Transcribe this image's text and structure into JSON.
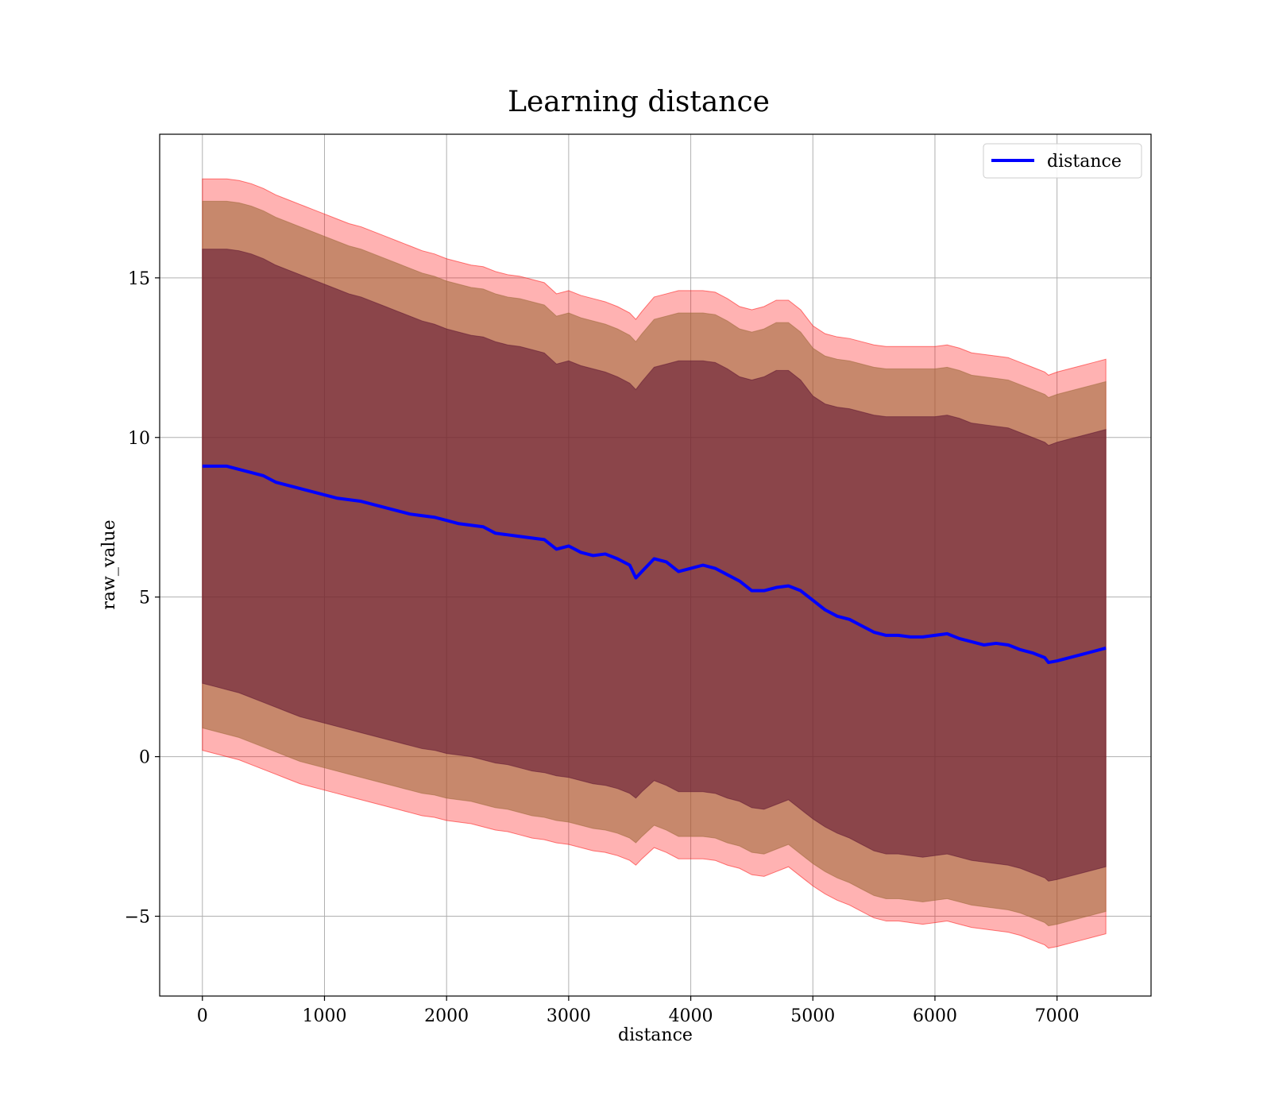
{
  "chart_data": {
    "type": "line",
    "title": "Learning distance",
    "xlabel": "distance",
    "ylabel": "raw_value",
    "xlim": [
      -350,
      7770
    ],
    "ylim": [
      -7.5,
      19.5
    ],
    "xticks": [
      0,
      1000,
      2000,
      3000,
      4000,
      5000,
      6000,
      7000
    ],
    "xtick_labels": [
      "0",
      "1000",
      "2000",
      "3000",
      "4000",
      "5000",
      "6000",
      "7000"
    ],
    "yticks": [
      -5,
      0,
      5,
      10,
      15
    ],
    "ytick_labels": [
      "−5",
      "0",
      "5",
      "10",
      "15"
    ],
    "grid": true,
    "legend": {
      "position": "top-right",
      "entries": [
        "distance"
      ]
    },
    "colors": {
      "line": "#0000ff",
      "band_outer": "#ff0000",
      "band_middle": "#996633",
      "band_inner": "#5a0f30",
      "grid": "#b0b0b0"
    },
    "series": [
      {
        "name": "distance",
        "x": [
          0,
          100,
          200,
          300,
          400,
          500,
          600,
          700,
          800,
          900,
          1000,
          1100,
          1200,
          1300,
          1400,
          1500,
          1600,
          1700,
          1800,
          1900,
          2000,
          2100,
          2200,
          2300,
          2400,
          2500,
          2600,
          2700,
          2800,
          2900,
          3000,
          3100,
          3200,
          3300,
          3400,
          3500,
          3550,
          3600,
          3700,
          3800,
          3900,
          4000,
          4100,
          4200,
          4300,
          4400,
          4500,
          4600,
          4700,
          4800,
          4900,
          5000,
          5100,
          5200,
          5300,
          5400,
          5500,
          5600,
          5700,
          5800,
          5900,
          6000,
          6100,
          6200,
          6300,
          6400,
          6500,
          6600,
          6700,
          6800,
          6900,
          6930,
          7000,
          7100,
          7200,
          7300,
          7400
        ],
        "y": [
          9.1,
          9.1,
          9.1,
          9.0,
          8.9,
          8.8,
          8.6,
          8.5,
          8.4,
          8.3,
          8.2,
          8.1,
          8.05,
          8.0,
          7.9,
          7.8,
          7.7,
          7.6,
          7.55,
          7.5,
          7.4,
          7.3,
          7.25,
          7.2,
          7.0,
          6.95,
          6.9,
          6.85,
          6.8,
          6.5,
          6.6,
          6.4,
          6.3,
          6.35,
          6.2,
          6.0,
          5.6,
          5.8,
          6.2,
          6.1,
          5.8,
          5.9,
          6.0,
          5.9,
          5.7,
          5.5,
          5.2,
          5.2,
          5.3,
          5.35,
          5.2,
          4.9,
          4.6,
          4.4,
          4.3,
          4.1,
          3.9,
          3.8,
          3.8,
          3.75,
          3.75,
          3.8,
          3.85,
          3.7,
          3.6,
          3.5,
          3.55,
          3.5,
          3.35,
          3.25,
          3.1,
          2.95,
          3.0,
          3.1,
          3.2,
          3.3,
          3.4
        ]
      }
    ],
    "bands": [
      {
        "role": "outer",
        "lower": [
          0.2,
          0.1,
          0.0,
          -0.1,
          -0.25,
          -0.4,
          -0.55,
          -0.7,
          -0.85,
          -0.95,
          -1.05,
          -1.15,
          -1.25,
          -1.35,
          -1.45,
          -1.55,
          -1.65,
          -1.75,
          -1.85,
          -1.9,
          -2.0,
          -2.05,
          -2.1,
          -2.2,
          -2.3,
          -2.35,
          -2.45,
          -2.55,
          -2.6,
          -2.7,
          -2.75,
          -2.85,
          -2.95,
          -3.0,
          -3.1,
          -3.25,
          -3.4,
          -3.2,
          -2.85,
          -3.0,
          -3.2,
          -3.2,
          -3.2,
          -3.25,
          -3.4,
          -3.5,
          -3.7,
          -3.75,
          -3.6,
          -3.45,
          -3.75,
          -4.05,
          -4.3,
          -4.5,
          -4.65,
          -4.85,
          -5.05,
          -5.15,
          -5.15,
          -5.2,
          -5.25,
          -5.2,
          -5.15,
          -5.25,
          -5.35,
          -5.4,
          -5.45,
          -5.5,
          -5.6,
          -5.75,
          -5.9,
          -6.0,
          -5.95,
          -5.85,
          -5.75,
          -5.65,
          -5.55
        ],
        "upper": [
          18.1,
          18.1,
          18.1,
          18.05,
          17.95,
          17.8,
          17.6,
          17.45,
          17.3,
          17.15,
          17.0,
          16.85,
          16.7,
          16.6,
          16.45,
          16.3,
          16.15,
          16.0,
          15.85,
          15.75,
          15.6,
          15.5,
          15.4,
          15.35,
          15.2,
          15.1,
          15.05,
          14.95,
          14.85,
          14.5,
          14.6,
          14.45,
          14.35,
          14.25,
          14.1,
          13.9,
          13.7,
          13.95,
          14.4,
          14.5,
          14.6,
          14.6,
          14.6,
          14.55,
          14.35,
          14.1,
          14.0,
          14.1,
          14.3,
          14.3,
          14.0,
          13.5,
          13.25,
          13.15,
          13.1,
          13.0,
          12.9,
          12.85,
          12.85,
          12.85,
          12.85,
          12.85,
          12.9,
          12.8,
          12.65,
          12.6,
          12.55,
          12.5,
          12.35,
          12.2,
          12.05,
          11.95,
          12.05,
          12.15,
          12.25,
          12.35,
          12.45
        ]
      },
      {
        "role": "middle",
        "lower": [
          0.9,
          0.8,
          0.7,
          0.6,
          0.45,
          0.3,
          0.15,
          0.0,
          -0.15,
          -0.25,
          -0.35,
          -0.45,
          -0.55,
          -0.65,
          -0.75,
          -0.85,
          -0.95,
          -1.05,
          -1.15,
          -1.2,
          -1.3,
          -1.35,
          -1.4,
          -1.5,
          -1.6,
          -1.65,
          -1.75,
          -1.85,
          -1.9,
          -2.0,
          -2.05,
          -2.15,
          -2.25,
          -2.3,
          -2.4,
          -2.55,
          -2.7,
          -2.5,
          -2.15,
          -2.3,
          -2.5,
          -2.5,
          -2.5,
          -2.55,
          -2.7,
          -2.8,
          -3.0,
          -3.05,
          -2.9,
          -2.75,
          -3.05,
          -3.35,
          -3.6,
          -3.8,
          -3.95,
          -4.15,
          -4.35,
          -4.45,
          -4.45,
          -4.5,
          -4.55,
          -4.5,
          -4.45,
          -4.55,
          -4.65,
          -4.7,
          -4.75,
          -4.8,
          -4.9,
          -5.05,
          -5.2,
          -5.3,
          -5.25,
          -5.15,
          -5.05,
          -4.95,
          -4.85
        ],
        "upper": [
          17.4,
          17.4,
          17.4,
          17.35,
          17.25,
          17.1,
          16.9,
          16.75,
          16.6,
          16.45,
          16.3,
          16.15,
          16.0,
          15.9,
          15.75,
          15.6,
          15.45,
          15.3,
          15.15,
          15.05,
          14.9,
          14.8,
          14.7,
          14.65,
          14.5,
          14.4,
          14.35,
          14.25,
          14.15,
          13.8,
          13.9,
          13.75,
          13.65,
          13.55,
          13.4,
          13.2,
          13.0,
          13.25,
          13.7,
          13.8,
          13.9,
          13.9,
          13.9,
          13.85,
          13.65,
          13.4,
          13.3,
          13.4,
          13.6,
          13.6,
          13.3,
          12.8,
          12.55,
          12.45,
          12.4,
          12.3,
          12.2,
          12.15,
          12.15,
          12.15,
          12.15,
          12.15,
          12.2,
          12.1,
          11.95,
          11.9,
          11.85,
          11.8,
          11.65,
          11.5,
          11.35,
          11.25,
          11.35,
          11.45,
          11.55,
          11.65,
          11.75
        ]
      },
      {
        "role": "inner",
        "lower": [
          2.3,
          2.2,
          2.1,
          2.0,
          1.85,
          1.7,
          1.55,
          1.4,
          1.25,
          1.15,
          1.05,
          0.95,
          0.85,
          0.75,
          0.65,
          0.55,
          0.45,
          0.35,
          0.25,
          0.2,
          0.1,
          0.05,
          0.0,
          -0.1,
          -0.2,
          -0.25,
          -0.35,
          -0.45,
          -0.5,
          -0.6,
          -0.65,
          -0.75,
          -0.85,
          -0.9,
          -1.0,
          -1.15,
          -1.3,
          -1.1,
          -0.75,
          -0.9,
          -1.1,
          -1.1,
          -1.1,
          -1.15,
          -1.3,
          -1.4,
          -1.6,
          -1.65,
          -1.5,
          -1.35,
          -1.65,
          -1.95,
          -2.2,
          -2.4,
          -2.55,
          -2.75,
          -2.95,
          -3.05,
          -3.05,
          -3.1,
          -3.15,
          -3.1,
          -3.05,
          -3.15,
          -3.25,
          -3.3,
          -3.35,
          -3.4,
          -3.5,
          -3.65,
          -3.8,
          -3.9,
          -3.85,
          -3.75,
          -3.65,
          -3.55,
          -3.45
        ],
        "upper": [
          15.9,
          15.9,
          15.9,
          15.85,
          15.75,
          15.6,
          15.4,
          15.25,
          15.1,
          14.95,
          14.8,
          14.65,
          14.5,
          14.4,
          14.25,
          14.1,
          13.95,
          13.8,
          13.65,
          13.55,
          13.4,
          13.3,
          13.2,
          13.15,
          13.0,
          12.9,
          12.85,
          12.75,
          12.65,
          12.3,
          12.4,
          12.25,
          12.15,
          12.05,
          11.9,
          11.7,
          11.5,
          11.75,
          12.2,
          12.3,
          12.4,
          12.4,
          12.4,
          12.35,
          12.15,
          11.9,
          11.8,
          11.9,
          12.1,
          12.1,
          11.8,
          11.3,
          11.05,
          10.95,
          10.9,
          10.8,
          10.7,
          10.65,
          10.65,
          10.65,
          10.65,
          10.65,
          10.7,
          10.6,
          10.45,
          10.4,
          10.35,
          10.3,
          10.15,
          10.0,
          9.85,
          9.75,
          9.85,
          9.95,
          10.05,
          10.15,
          10.25
        ]
      }
    ]
  }
}
